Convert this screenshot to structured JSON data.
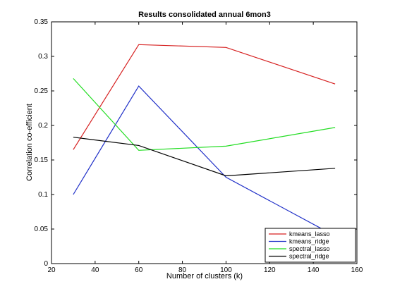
{
  "chart_data": {
    "type": "line",
    "title": "Results consolidated annual 6mon3",
    "xlabel": "Number of clusters (k)",
    "ylabel": "Correlation co-efficient",
    "xlim": [
      20,
      160
    ],
    "ylim": [
      0,
      0.35
    ],
    "xticks": [
      20,
      40,
      60,
      80,
      100,
      120,
      140,
      160
    ],
    "xtick_labels": [
      "20",
      "40",
      "60",
      "80",
      "100",
      "120",
      "140",
      "160"
    ],
    "yticks": [
      0,
      0.05,
      0.1,
      0.15,
      0.2,
      0.25,
      0.3,
      0.35
    ],
    "ytick_labels": [
      "0",
      "0.05",
      "0.1",
      "0.15",
      "0.2",
      "0.25",
      "0.3",
      "0.35"
    ],
    "x": [
      30,
      60,
      100,
      150
    ],
    "legend_position": "bottom-right",
    "grid": false,
    "series": [
      {
        "name": "kmeans_lasso",
        "color": "#d62020",
        "values": [
          0.165,
          0.317,
          0.313,
          0.26
        ]
      },
      {
        "name": "kmeans_ridge",
        "color": "#2030c8",
        "values": [
          0.1,
          0.257,
          0.125,
          0.04
        ]
      },
      {
        "name": "spectral_lasso",
        "color": "#22dd22",
        "values": [
          0.268,
          0.164,
          0.17,
          0.197
        ]
      },
      {
        "name": "spectral_ridge",
        "color": "#000000",
        "values": [
          0.183,
          0.171,
          0.127,
          0.138
        ]
      }
    ]
  }
}
